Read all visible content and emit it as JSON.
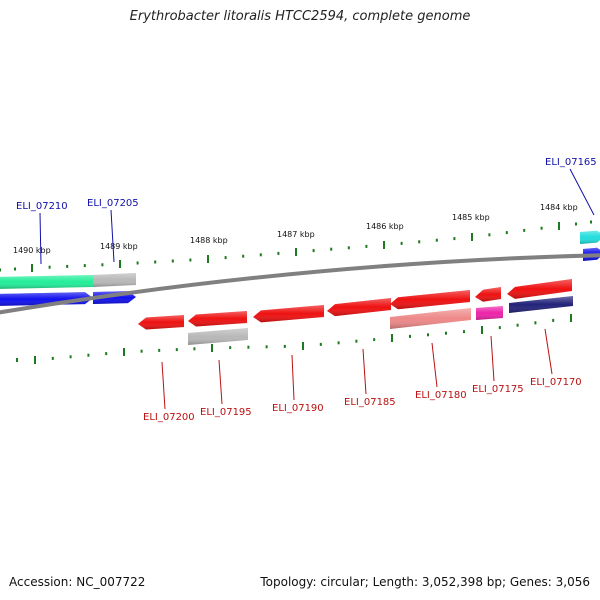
{
  "title": "Erythrobacter litoralis HTCC2594, complete genome",
  "accession_text": "Accession: NC_007722",
  "summary_text": "Topology: circular; Length: 3,052,398 bp; Genes: 3,056",
  "colors": {
    "backbone": "#808080",
    "tick": "#1e7a1e",
    "forward_label": "#1010aa",
    "reverse_label": "#bb1111",
    "blue": "#1010ee",
    "aqua": "#22ee99",
    "cyan": "#22dddd",
    "gray": "#b8b8b8",
    "red": "#ee1111",
    "pink": "#ee8888",
    "magenta": "#ee22aa",
    "navy": "#22227a"
  },
  "ticks": [
    {
      "label": "1490 kbp"
    },
    {
      "label": "1489 kbp"
    },
    {
      "label": "1488 kbp"
    },
    {
      "label": "1487 kbp"
    },
    {
      "label": "1486 kbp"
    },
    {
      "label": "1485 kbp"
    },
    {
      "label": "1484 kbp"
    }
  ],
  "genes": [
    {
      "id": "ELI_07210",
      "strand": "forward"
    },
    {
      "id": "ELI_07205",
      "strand": "forward"
    },
    {
      "id": "ELI_07165",
      "strand": "forward"
    },
    {
      "id": "ELI_07200",
      "strand": "reverse"
    },
    {
      "id": "ELI_07195",
      "strand": "reverse"
    },
    {
      "id": "ELI_07190",
      "strand": "reverse"
    },
    {
      "id": "ELI_07185",
      "strand": "reverse"
    },
    {
      "id": "ELI_07180",
      "strand": "reverse"
    },
    {
      "id": "ELI_07175",
      "strand": "reverse"
    },
    {
      "id": "ELI_07170",
      "strand": "reverse"
    }
  ]
}
